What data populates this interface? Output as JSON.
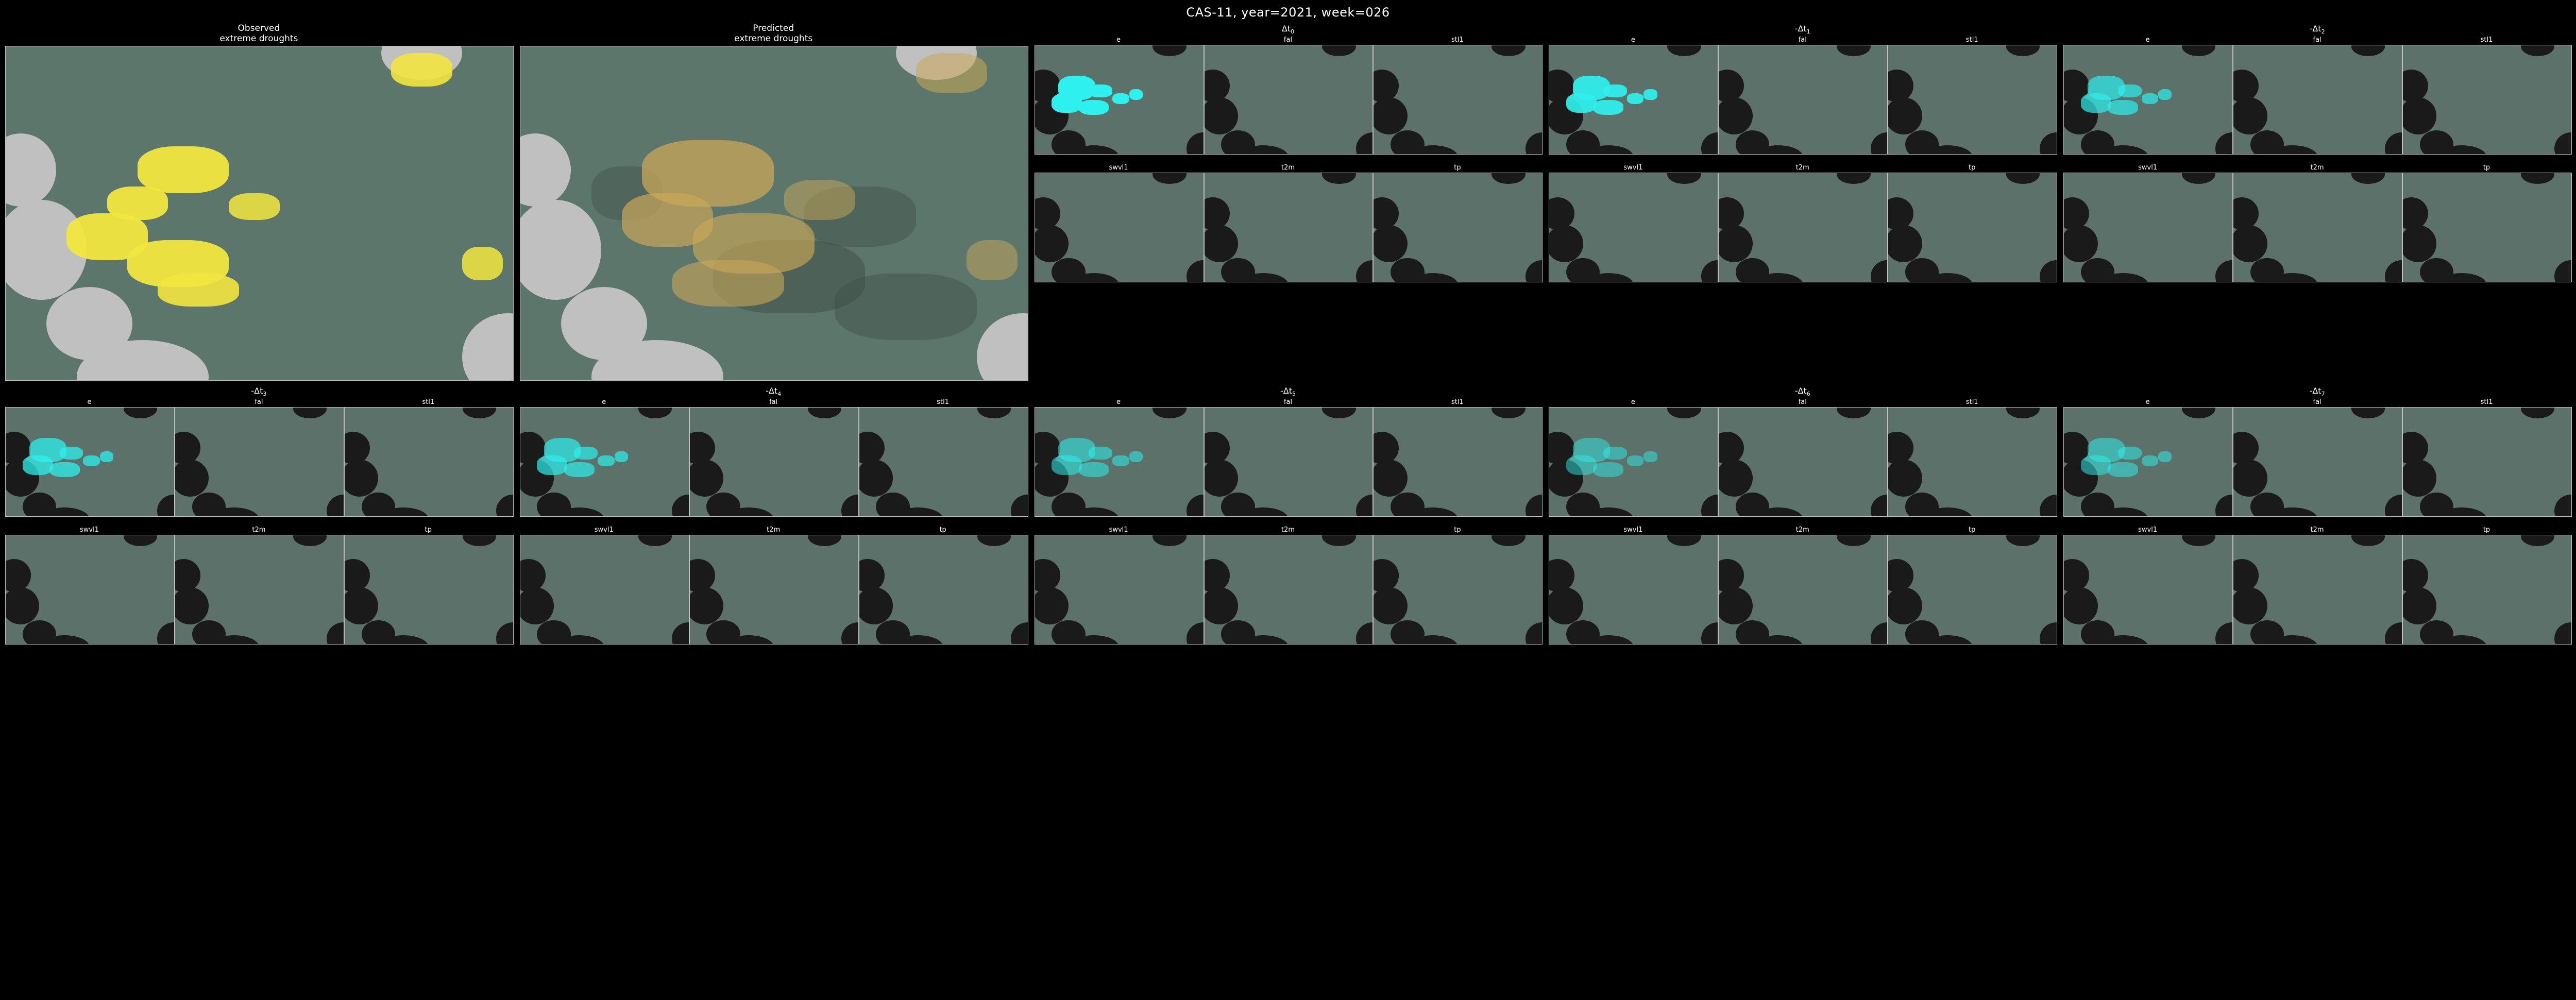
{
  "title": "CAS-11,   year=2021, week=026",
  "colors": {
    "background": "#000000",
    "text": "#ffffff",
    "panel_border": "#bfbfbf",
    "big_map_bg": "#5d766c",
    "big_land": "#c0c0c0",
    "small_map_bg": "#5c7169",
    "small_land": "#1a1a1a",
    "observed_highlight": "#f2e640",
    "predicted_highlight": "#c9a758",
    "predicted_shadow": "#3f5048",
    "saliency_highlight": "#2ef0ee"
  },
  "big_panels": [
    {
      "id": "observed",
      "title_l1": "Observed",
      "title_l2": "extreme droughts",
      "style": "obs"
    },
    {
      "id": "predicted",
      "title_l1": "Predicted",
      "title_l2": "extreme droughts",
      "style": "pred"
    }
  ],
  "variables_top": [
    "e",
    "fal",
    "stl1"
  ],
  "variables_bot": [
    "swvl1",
    "t2m",
    "tp"
  ],
  "time_groups": [
    {
      "label_prefix": "Δt",
      "sub": "0",
      "saliency_intensity": 1.0
    },
    {
      "label_prefix": "-Δt",
      "sub": "1",
      "saliency_intensity": 0.92
    },
    {
      "label_prefix": "-Δt",
      "sub": "2",
      "saliency_intensity": 0.7
    },
    {
      "label_prefix": "-Δt",
      "sub": "3",
      "saliency_intensity": 0.75
    },
    {
      "label_prefix": "-Δt",
      "sub": "4",
      "saliency_intensity": 0.7
    },
    {
      "label_prefix": "-Δt",
      "sub": "5",
      "saliency_intensity": 0.55
    },
    {
      "label_prefix": "-Δt",
      "sub": "6",
      "saliency_intensity": 0.48
    },
    {
      "label_prefix": "-Δt",
      "sub": "7",
      "saliency_intensity": 0.52
    }
  ],
  "big_land_shapes": [
    {
      "l": -4,
      "t": 26,
      "w": 14,
      "h": 22
    },
    {
      "l": -2,
      "t": 46,
      "w": 18,
      "h": 30
    },
    {
      "l": 8,
      "t": 72,
      "w": 17,
      "h": 22
    },
    {
      "l": 14,
      "t": 88,
      "w": 26,
      "h": 22
    },
    {
      "l": 74,
      "t": -6,
      "w": 16,
      "h": 16
    },
    {
      "l": 90,
      "t": 80,
      "w": 18,
      "h": 26
    }
  ],
  "small_land_shapes": [
    {
      "l": -5,
      "t": 22,
      "w": 20,
      "h": 30
    },
    {
      "l": -2,
      "t": 48,
      "w": 22,
      "h": 34
    },
    {
      "l": 10,
      "t": 78,
      "w": 20,
      "h": 26
    },
    {
      "l": 20,
      "t": 92,
      "w": 30,
      "h": 22
    },
    {
      "l": 70,
      "t": -8,
      "w": 20,
      "h": 18
    },
    {
      "l": 90,
      "t": 80,
      "w": 20,
      "h": 30
    }
  ],
  "obs_blobs": [
    {
      "l": 26,
      "t": 30,
      "w": 18,
      "h": 14,
      "o": 0.95
    },
    {
      "l": 20,
      "t": 42,
      "w": 12,
      "h": 10,
      "o": 0.95
    },
    {
      "l": 12,
      "t": 50,
      "w": 16,
      "h": 14,
      "o": 0.95
    },
    {
      "l": 24,
      "t": 58,
      "w": 20,
      "h": 14,
      "o": 0.95
    },
    {
      "l": 30,
      "t": 68,
      "w": 16,
      "h": 10,
      "o": 0.9
    },
    {
      "l": 44,
      "t": 44,
      "w": 10,
      "h": 8,
      "o": 0.85
    },
    {
      "l": 76,
      "t": 2,
      "w": 12,
      "h": 10,
      "o": 0.9
    },
    {
      "l": 90,
      "t": 60,
      "w": 8,
      "h": 10,
      "o": 0.85
    }
  ],
  "pred_blobs": [
    {
      "l": 24,
      "t": 28,
      "w": 26,
      "h": 20,
      "o": 0.75
    },
    {
      "l": 20,
      "t": 44,
      "w": 18,
      "h": 16,
      "o": 0.7
    },
    {
      "l": 34,
      "t": 50,
      "w": 24,
      "h": 18,
      "o": 0.65
    },
    {
      "l": 30,
      "t": 64,
      "w": 22,
      "h": 14,
      "o": 0.6
    },
    {
      "l": 52,
      "t": 40,
      "w": 14,
      "h": 12,
      "o": 0.5
    },
    {
      "l": 78,
      "t": 2,
      "w": 14,
      "h": 12,
      "o": 0.55
    },
    {
      "l": 88,
      "t": 58,
      "w": 10,
      "h": 12,
      "o": 0.5
    }
  ],
  "pred_shadow_blobs": [
    {
      "l": 38,
      "t": 58,
      "w": 30,
      "h": 22,
      "o": 0.55
    },
    {
      "l": 56,
      "t": 42,
      "w": 22,
      "h": 18,
      "o": 0.45
    },
    {
      "l": 62,
      "t": 68,
      "w": 28,
      "h": 20,
      "o": 0.45
    },
    {
      "l": 14,
      "t": 36,
      "w": 14,
      "h": 16,
      "o": 0.4
    }
  ],
  "saliency_blobs": [
    {
      "l": 14,
      "t": 28,
      "w": 22,
      "h": 22
    },
    {
      "l": 10,
      "t": 44,
      "w": 18,
      "h": 18
    },
    {
      "l": 26,
      "t": 50,
      "w": 18,
      "h": 14
    },
    {
      "l": 32,
      "t": 36,
      "w": 14,
      "h": 12
    },
    {
      "l": 46,
      "t": 44,
      "w": 10,
      "h": 10
    },
    {
      "l": 56,
      "t": 40,
      "w": 8,
      "h": 10
    }
  ]
}
